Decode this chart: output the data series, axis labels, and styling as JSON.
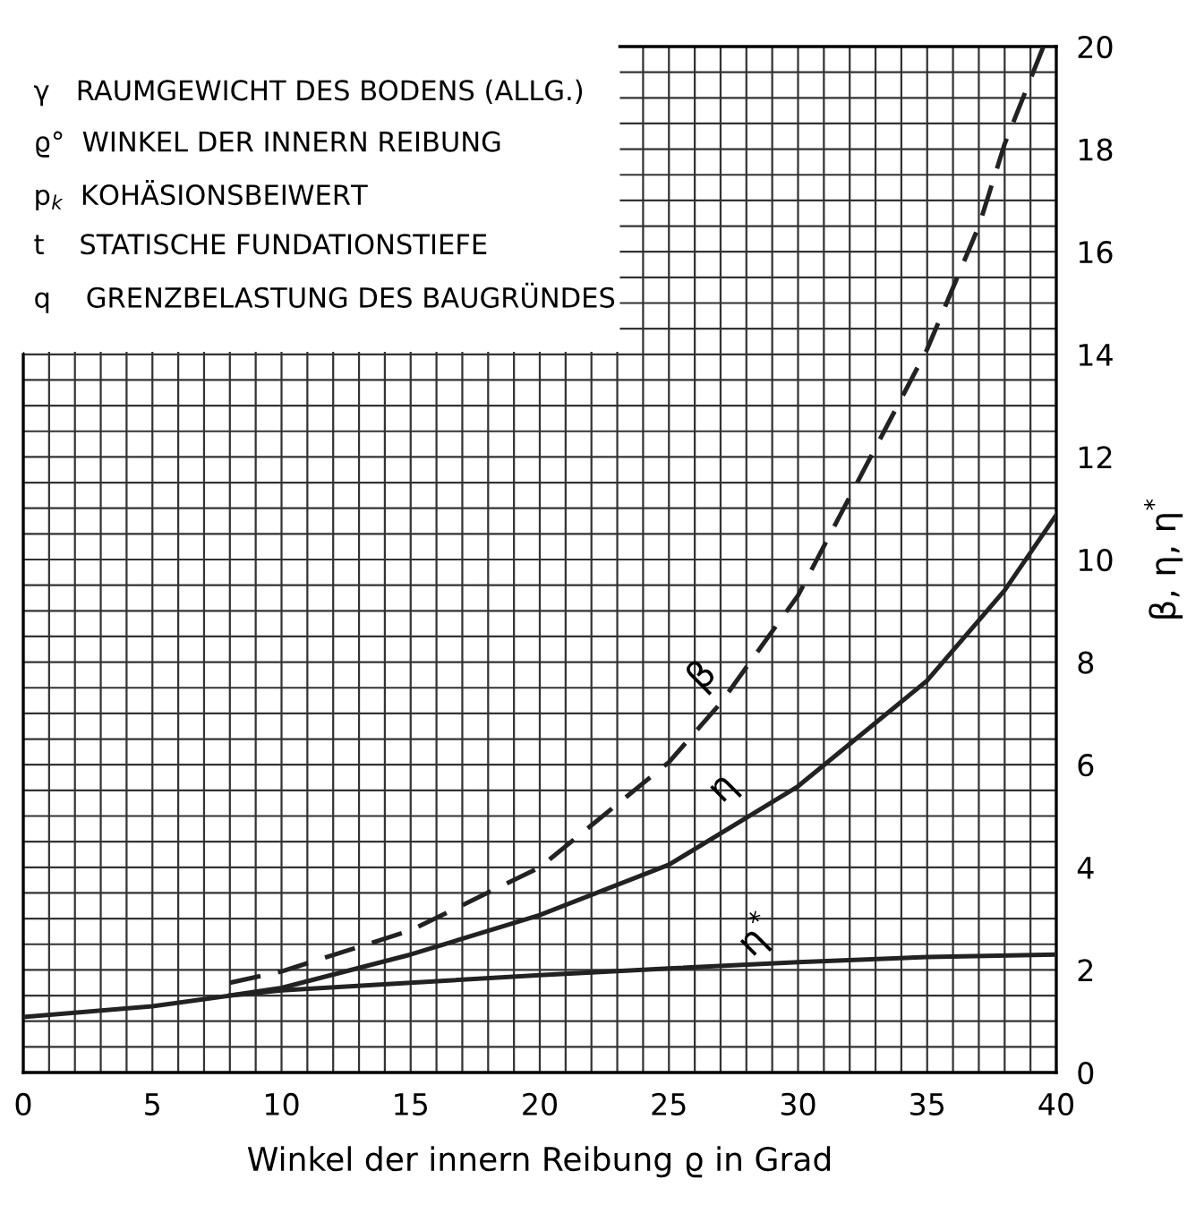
{
  "chart_data": {
    "type": "line",
    "xlabel": "Winkel der innern Reibung ϱ in Grad",
    "ylabel": "β, η, η$^{*}$",
    "xlim": [
      0,
      40
    ],
    "ylim": [
      0,
      20
    ],
    "xticks": [
      0,
      {
        "value": 1,
        "label": null
      },
      {
        "value": 2,
        "label": null
      },
      {
        "value": 3,
        "label": null
      },
      {
        "value": 4,
        "label": null
      },
      5,
      {
        "value": 6,
        "label": null
      },
      {
        "value": 7,
        "label": null
      },
      {
        "value": 8,
        "label": null
      },
      {
        "value": 9,
        "label": null
      },
      10,
      {
        "value": 11,
        "label": null
      },
      {
        "value": 12,
        "label": null
      },
      {
        "value": 13,
        "label": null
      },
      {
        "value": 14,
        "label": null
      },
      15,
      {
        "value": 16,
        "label": null
      },
      {
        "value": 17,
        "label": null
      },
      {
        "value": 18,
        "label": null
      },
      {
        "value": 19,
        "label": null
      },
      20,
      {
        "value": 21,
        "label": null
      },
      {
        "value": 22,
        "label": null
      },
      {
        "value": 23,
        "label": null
      },
      {
        "value": 24,
        "label": null
      },
      25,
      {
        "value": 26,
        "label": null
      },
      {
        "value": 27,
        "label": null
      },
      {
        "value": 28,
        "label": null
      },
      {
        "value": 29,
        "label": null
      },
      30,
      {
        "value": 31,
        "label": null
      },
      {
        "value": 32,
        "label": null
      },
      {
        "value": 33,
        "label": null
      },
      {
        "value": 34,
        "label": null
      },
      35,
      {
        "value": 36,
        "label": null
      },
      {
        "value": 37,
        "label": null
      },
      {
        "value": 38,
        "label": null
      },
      {
        "value": 39,
        "label": null
      },
      40
    ],
    "yticks": [
      0,
      {
        "value": 0.5,
        "label": null
      },
      {
        "value": 1,
        "label": null
      },
      {
        "value": 1.5,
        "label": null
      },
      2,
      {
        "value": 2.5,
        "label": null
      },
      {
        "value": 3,
        "label": null
      },
      {
        "value": 3.5,
        "label": null
      },
      4,
      {
        "value": 4.5,
        "label": null
      },
      {
        "value": 5,
        "label": null
      },
      {
        "value": 5.5,
        "label": null
      },
      6,
      {
        "value": 6.5,
        "label": null
      },
      {
        "value": 7,
        "label": null
      },
      {
        "value": 7.5,
        "label": null
      },
      8,
      {
        "value": 8.5,
        "label": null
      },
      {
        "value": 9,
        "label": null
      },
      {
        "value": 9.5,
        "label": null
      },
      10,
      {
        "value": 10.5,
        "label": null
      },
      {
        "value": 11,
        "label": null
      },
      {
        "value": 11.5,
        "label": null
      },
      12,
      {
        "value": 12.5,
        "label": null
      },
      {
        "value": 13,
        "label": null
      },
      {
        "value": 13.5,
        "label": null
      },
      14,
      {
        "value": 14.5,
        "label": null
      },
      {
        "value": 15,
        "label": null
      },
      {
        "value": 15.5,
        "label": null
      },
      16,
      {
        "value": 16.5,
        "label": null
      },
      {
        "value": 17,
        "label": null
      },
      {
        "value": 17.5,
        "label": null
      },
      18,
      {
        "value": 18.5,
        "label": null
      },
      {
        "value": 19,
        "label": null
      },
      {
        "value": 19.5,
        "label": null
      },
      20
    ],
    "grid": true,
    "series": [
      {
        "color": "#222222",
        "line_style": "dashed",
        "x": [
          8,
          10,
          15,
          20,
          25,
          27,
          30,
          35,
          37,
          38,
          39.5
        ],
        "values": [
          1.75,
          1.97,
          2.77,
          4.0,
          6.05,
          7.2,
          9.3,
          14.1,
          16.5,
          18.1,
          20
        ]
      },
      {
        "color": "#222222",
        "line_style": "solid",
        "x": [
          0,
          5,
          8,
          10,
          15,
          20,
          25,
          30,
          35,
          38,
          40
        ],
        "values": [
          1.08,
          1.29,
          1.5,
          1.65,
          2.3,
          3.07,
          4.05,
          5.58,
          7.64,
          9.4,
          10.87
        ]
      },
      {
        "color": "#222222",
        "line_style": "solid",
        "x": [
          8,
          10,
          15,
          20,
          25,
          30,
          35,
          40
        ],
        "values": [
          1.5,
          1.6,
          1.75,
          1.9,
          2.03,
          2.15,
          2.25,
          2.3
        ]
      }
    ],
    "annotations": [
      "β",
      "η",
      "η$^{*}$",
      "γ   RAUMGEWICHT DES BODENS (ALLG.)",
      "ϱ°  WINKEL DER INNERN REIBUNG",
      "p$_{k}$  KOHÄSIONSBEIWERT",
      "t    STATISCHE FUNDATIONSTIEFE",
      "q    GRENZBELASTUNG DES BAUGRÜNDES"
    ]
  }
}
